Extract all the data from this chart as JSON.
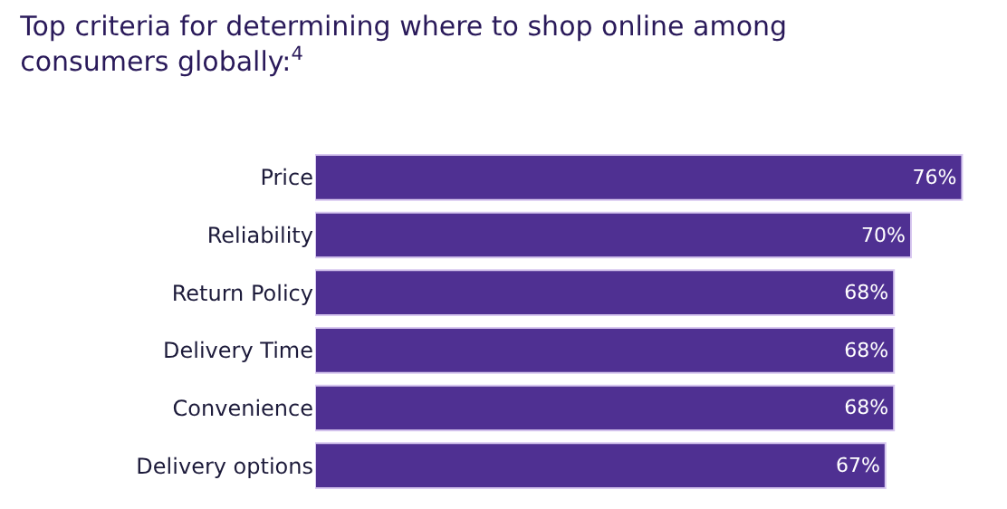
{
  "chart_data": {
    "type": "bar",
    "orientation": "horizontal",
    "title": "Top criteria for determining where to shop online among consumers globally:$^{4}$",
    "categories": [
      "Price",
      "Reliability",
      "Return Policy",
      "Delivery Time",
      "Convenience",
      "Delivery options"
    ],
    "values": [
      76,
      70,
      68,
      68,
      68,
      67
    ],
    "value_labels": [
      "76%",
      "70%",
      "68%",
      "68%",
      "68%",
      "67%"
    ],
    "color": "#4f3092"
  }
}
